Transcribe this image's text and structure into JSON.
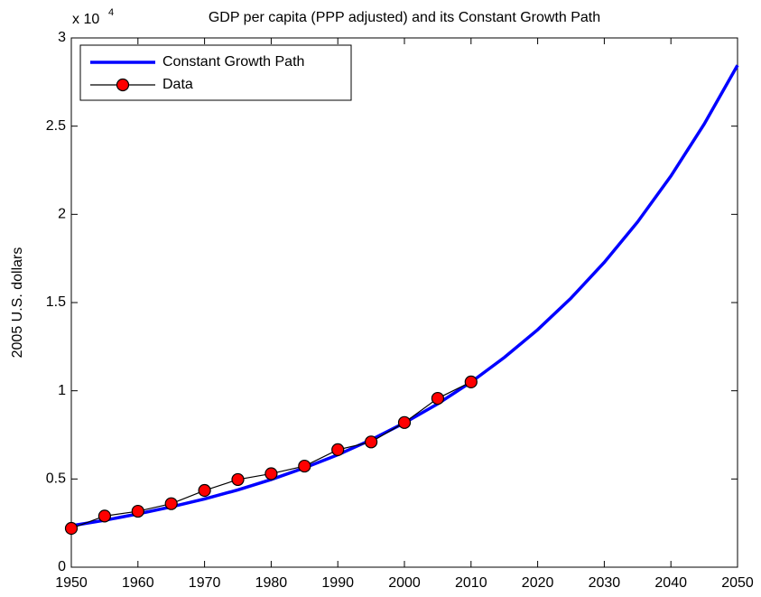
{
  "chart_data": {
    "type": "line",
    "title": "GDP per capita (PPP adjusted) and its Constant Growth Path",
    "y_label": "2005 U.S. dollars",
    "y_multiplier": "x 10",
    "y_multiplier_exponent": "4",
    "xlim": [
      1950,
      2050
    ],
    "xticks": [
      1950,
      1960,
      1970,
      1980,
      1990,
      2000,
      2010,
      2020,
      2030,
      2040,
      2050
    ],
    "ylim": [
      0,
      3
    ],
    "yticks": [
      0,
      0.5,
      1,
      1.5,
      2,
      2.5,
      3
    ],
    "legend": "northwest",
    "series": [
      {
        "name": "Constant Growth Path",
        "color": "#0000ff",
        "marker": "none",
        "x": [
          1950,
          1955,
          1960,
          1965,
          1970,
          1975,
          1980,
          1985,
          1990,
          1995,
          2000,
          2005,
          2010,
          2015,
          2020,
          2025,
          2030,
          2035,
          2040,
          2045,
          2050
        ],
        "values": [
          0.235,
          0.266,
          0.302,
          0.342,
          0.387,
          0.438,
          0.497,
          0.563,
          0.637,
          0.722,
          0.818,
          0.926,
          1.049,
          1.189,
          1.346,
          1.525,
          1.728,
          1.957,
          2.217,
          2.512,
          2.845
        ]
      },
      {
        "name": "Data",
        "color": "#000000",
        "marker": "circle",
        "marker_color": "#ff0000",
        "x": [
          1950,
          1955,
          1960,
          1965,
          1970,
          1975,
          1980,
          1985,
          1990,
          1995,
          2000,
          2005,
          2010
        ],
        "values": [
          0.22,
          0.29,
          0.317,
          0.36,
          0.435,
          0.497,
          0.53,
          0.573,
          0.666,
          0.71,
          0.82,
          0.957,
          1.05
        ]
      }
    ]
  }
}
